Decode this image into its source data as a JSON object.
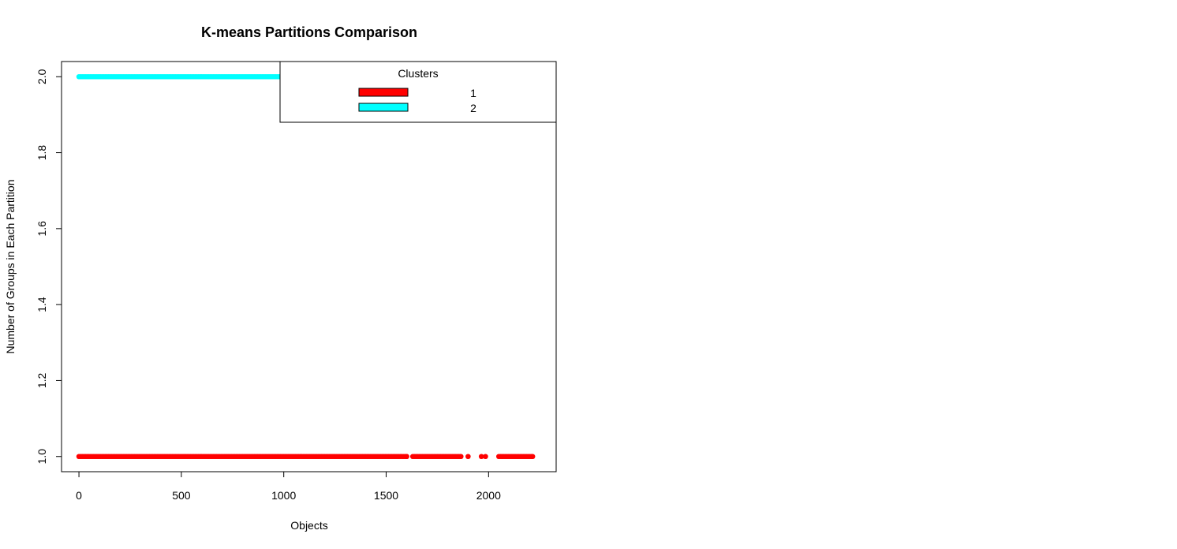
{
  "chart_data": {
    "type": "scatter",
    "title": "K-means Partitions Comparison",
    "xlabel": "Objects",
    "ylabel": "Number of Groups in Each Partition",
    "xlim": [
      -85,
      2330
    ],
    "ylim": [
      0.96,
      2.04
    ],
    "x_ticks": [
      0,
      500,
      1000,
      1500,
      2000
    ],
    "x_tick_labels": [
      "0",
      "500",
      "1000",
      "1500",
      "2000"
    ],
    "y_ticks": [
      1.0,
      1.2,
      1.4,
      1.6,
      1.8,
      2.0
    ],
    "y_tick_labels": [
      "1.0",
      "1.2",
      "1.4",
      "1.6",
      "1.8",
      "2.0"
    ],
    "grid": false,
    "legend": {
      "title": "Clusters",
      "placement": "top-right",
      "entries": [
        {
          "label": "1",
          "color": "#ff0000"
        },
        {
          "label": "2",
          "color": "#00ffff"
        }
      ]
    },
    "series": [
      {
        "name": "1",
        "color": "#ff0000",
        "y": 1.0,
        "x_ranges": [
          [
            0,
            1600
          ],
          [
            1630,
            1865
          ],
          [
            2050,
            2215
          ]
        ],
        "x_points": [
          1900,
          1965,
          1985
        ]
      },
      {
        "name": "2",
        "color": "#00ffff",
        "y": 2.0,
        "x_ranges": [
          [
            0,
            995
          ]
        ],
        "x_points": []
      }
    ]
  }
}
